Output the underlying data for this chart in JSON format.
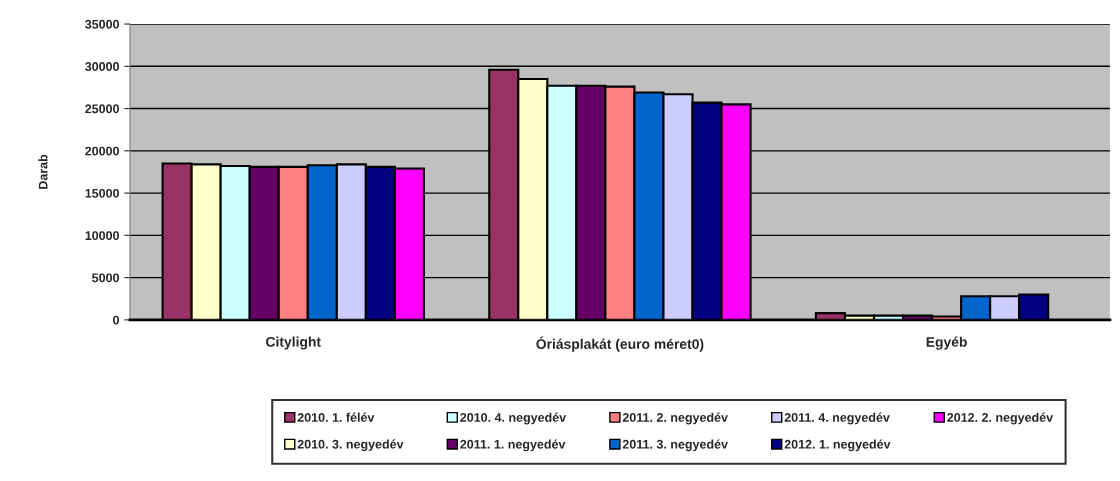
{
  "chart_data": {
    "type": "bar",
    "ylabel": "Darab",
    "categories": [
      "Citylight",
      "Óriásplakát (euro méret0)",
      "Egyéb"
    ],
    "ylim": [
      0,
      35000
    ],
    "yticks": [
      0,
      5000,
      10000,
      15000,
      20000,
      25000,
      30000,
      35000
    ],
    "grid": "y",
    "legend": "bottom",
    "series": [
      {
        "name": "2010. 1. félév",
        "color": "#993366",
        "values": [
          18500,
          29600,
          800
        ]
      },
      {
        "name": "2010. 3. negyedév",
        "color": "#ffffcc",
        "values": [
          18400,
          28500,
          500
        ]
      },
      {
        "name": "2010. 4. negyedév",
        "color": "#ccffff",
        "values": [
          18200,
          27700,
          500
        ]
      },
      {
        "name": "2011. 1. negyedév",
        "color": "#660066",
        "values": [
          18100,
          27700,
          500
        ]
      },
      {
        "name": "2011. 2. negyedév",
        "color": "#ff8080",
        "values": [
          18100,
          27600,
          400
        ]
      },
      {
        "name": "2011. 3. negyedév",
        "color": "#0066cc",
        "values": [
          18300,
          26900,
          2800
        ]
      },
      {
        "name": "2011. 4. negyedév",
        "color": "#ccccff",
        "values": [
          18400,
          26700,
          2800
        ]
      },
      {
        "name": "2012. 1. negyedév",
        "color": "#000080",
        "values": [
          18100,
          25700,
          3000
        ]
      },
      {
        "name": "2012. 2. negyedév",
        "color": "#ff00ff",
        "values": [
          17900,
          25500,
          null
        ]
      }
    ]
  }
}
